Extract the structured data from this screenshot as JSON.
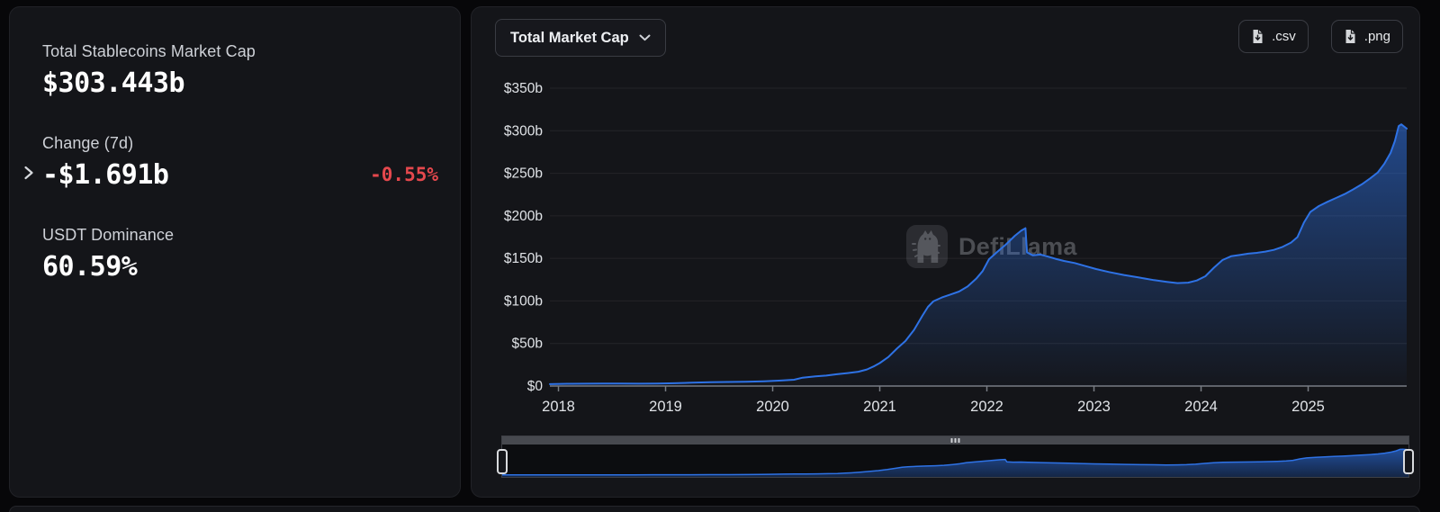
{
  "stats": {
    "market_cap_label": "Total Stablecoins Market Cap",
    "market_cap_value": "$303.443b",
    "change_label": "Change (7d)",
    "change_value": "-$1.691b",
    "change_pct": "-0.55%",
    "dominance_label": "USDT Dominance",
    "dominance_value": "60.59%"
  },
  "toolbar": {
    "metric_selector": "Total Market Cap",
    "csv_label": ".csv",
    "png_label": ".png"
  },
  "watermark": {
    "text": "DefiLlama"
  },
  "icons": {
    "expand_chevron": "›",
    "dropdown_chevron": "⌄",
    "download_file": "🗎",
    "brush_grip": "⋮⋮⋮"
  },
  "colors": {
    "page_bg": "#070709",
    "card_bg": "#141519",
    "accent_line": "#2e72e5",
    "area_fill": "#2e72e5",
    "negative_red": "#e5484d",
    "grid": "rgba(255,255,255,0.07)",
    "axis": "#787c83",
    "tick_label": "#e0e3e7",
    "scrollbar": "#47494f",
    "grip": "#cfd1d5",
    "mini_bg": "#0c0d10"
  },
  "chart_data": {
    "type": "area",
    "title": "Total Market Cap",
    "xlabel": "",
    "ylabel": "",
    "ylim": [
      0,
      350
    ],
    "xlim": [
      2017.92,
      2025.92
    ],
    "grid": true,
    "legend": false,
    "y_ticks": [
      {
        "value": 0,
        "label": "$0"
      },
      {
        "value": 50,
        "label": "$50b"
      },
      {
        "value": 100,
        "label": "$100b"
      },
      {
        "value": 150,
        "label": "$150b"
      },
      {
        "value": 200,
        "label": "$200b"
      },
      {
        "value": 250,
        "label": "$250b"
      },
      {
        "value": 300,
        "label": "$300b"
      },
      {
        "value": 350,
        "label": "$350b"
      }
    ],
    "x_ticks": [
      {
        "value": 2018,
        "label": "2018"
      },
      {
        "value": 2019,
        "label": "2019"
      },
      {
        "value": 2020,
        "label": "2020"
      },
      {
        "value": 2021,
        "label": "2021"
      },
      {
        "value": 2022,
        "label": "2022"
      },
      {
        "value": 2023,
        "label": "2023"
      },
      {
        "value": 2024,
        "label": "2024"
      },
      {
        "value": 2025,
        "label": "2025"
      }
    ],
    "series": [
      {
        "name": "Total Stablecoins Market Cap ($b)",
        "points": [
          [
            2017.92,
            2.2
          ],
          [
            2018.08,
            2.6
          ],
          [
            2018.25,
            2.8
          ],
          [
            2018.42,
            3.0
          ],
          [
            2018.58,
            2.9
          ],
          [
            2018.75,
            2.8
          ],
          [
            2018.92,
            2.9
          ],
          [
            2019.08,
            3.3
          ],
          [
            2019.25,
            3.9
          ],
          [
            2019.42,
            4.5
          ],
          [
            2019.58,
            4.8
          ],
          [
            2019.75,
            5.1
          ],
          [
            2019.92,
            5.6
          ],
          [
            2020.08,
            6.5
          ],
          [
            2020.2,
            7.4
          ],
          [
            2020.28,
            9.8
          ],
          [
            2020.4,
            11.4
          ],
          [
            2020.5,
            12.3
          ],
          [
            2020.6,
            13.8
          ],
          [
            2020.7,
            15.2
          ],
          [
            2020.8,
            16.8
          ],
          [
            2020.88,
            19.5
          ],
          [
            2020.95,
            23.5
          ],
          [
            2021.0,
            27.0
          ],
          [
            2021.08,
            34.0
          ],
          [
            2021.16,
            44.0
          ],
          [
            2021.24,
            53.0
          ],
          [
            2021.32,
            66.0
          ],
          [
            2021.4,
            83.0
          ],
          [
            2021.45,
            93.0
          ],
          [
            2021.5,
            99.5
          ],
          [
            2021.58,
            104.0
          ],
          [
            2021.66,
            107.5
          ],
          [
            2021.74,
            111.0
          ],
          [
            2021.82,
            117.0
          ],
          [
            2021.9,
            126.0
          ],
          [
            2021.96,
            135.0
          ],
          [
            2022.02,
            149.0
          ],
          [
            2022.1,
            158.0
          ],
          [
            2022.18,
            166.5
          ],
          [
            2022.26,
            176.5
          ],
          [
            2022.32,
            182.5
          ],
          [
            2022.36,
            185.5
          ],
          [
            2022.375,
            157.0
          ],
          [
            2022.43,
            153.5
          ],
          [
            2022.5,
            154.5
          ],
          [
            2022.56,
            152.5
          ],
          [
            2022.64,
            149.5
          ],
          [
            2022.72,
            147.0
          ],
          [
            2022.82,
            144.5
          ],
          [
            2022.92,
            141.0
          ],
          [
            2023.02,
            137.5
          ],
          [
            2023.14,
            134.0
          ],
          [
            2023.28,
            130.5
          ],
          [
            2023.42,
            127.5
          ],
          [
            2023.56,
            124.5
          ],
          [
            2023.68,
            122.5
          ],
          [
            2023.78,
            121.0
          ],
          [
            2023.88,
            121.5
          ],
          [
            2023.96,
            124.0
          ],
          [
            2024.04,
            129.0
          ],
          [
            2024.12,
            139.0
          ],
          [
            2024.2,
            148.0
          ],
          [
            2024.28,
            152.5
          ],
          [
            2024.36,
            154.0
          ],
          [
            2024.44,
            155.5
          ],
          [
            2024.52,
            156.5
          ],
          [
            2024.6,
            158.0
          ],
          [
            2024.68,
            160.0
          ],
          [
            2024.76,
            163.5
          ],
          [
            2024.84,
            168.5
          ],
          [
            2024.9,
            175.0
          ],
          [
            2024.96,
            192.0
          ],
          [
            2025.02,
            204.5
          ],
          [
            2025.1,
            211.5
          ],
          [
            2025.18,
            216.5
          ],
          [
            2025.26,
            221.0
          ],
          [
            2025.34,
            225.5
          ],
          [
            2025.42,
            231.0
          ],
          [
            2025.5,
            237.0
          ],
          [
            2025.58,
            244.0
          ],
          [
            2025.65,
            251.0
          ],
          [
            2025.71,
            261.0
          ],
          [
            2025.77,
            274.0
          ],
          [
            2025.81,
            288.0
          ],
          [
            2025.845,
            305.5
          ],
          [
            2025.87,
            307.5
          ],
          [
            2025.92,
            302.5
          ]
        ]
      }
    ]
  }
}
